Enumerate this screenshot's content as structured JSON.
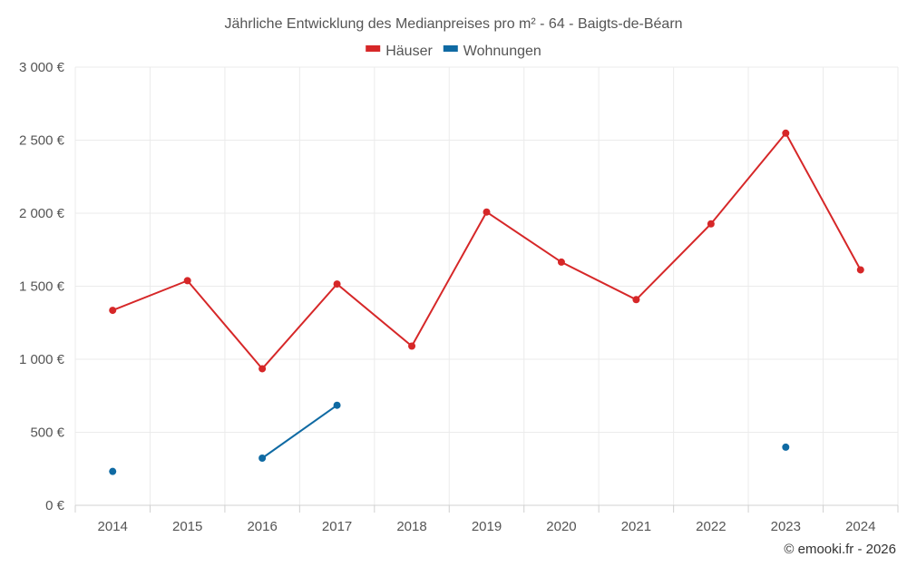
{
  "chart_data": {
    "type": "line",
    "title": "Jährliche Entwicklung des Medianpreises pro m² - 64 - Baigts-de-Béarn",
    "categories": [
      "2014",
      "2015",
      "2016",
      "2017",
      "2018",
      "2019",
      "2020",
      "2021",
      "2022",
      "2023",
      "2024"
    ],
    "ylim": [
      0,
      3000
    ],
    "yticks": [
      0,
      500,
      1000,
      1500,
      2000,
      2500,
      3000
    ],
    "ytick_labels": [
      "0 €",
      "500 €",
      "1 000 €",
      "1 500 €",
      "2 000 €",
      "2 500 €",
      "3 000 €"
    ],
    "series": [
      {
        "name": "Häuser",
        "color": "#d62728",
        "values": [
          1335,
          1538,
          935,
          1515,
          1090,
          2008,
          1665,
          1408,
          1927,
          2548,
          1612
        ]
      },
      {
        "name": "Wohnungen",
        "color": "#0f6aa3",
        "values": [
          232,
          null,
          323,
          685,
          null,
          null,
          null,
          null,
          null,
          398,
          null
        ]
      }
    ],
    "legend": "top-center",
    "grid": true
  },
  "credit": "© emooki.fr - 2026"
}
